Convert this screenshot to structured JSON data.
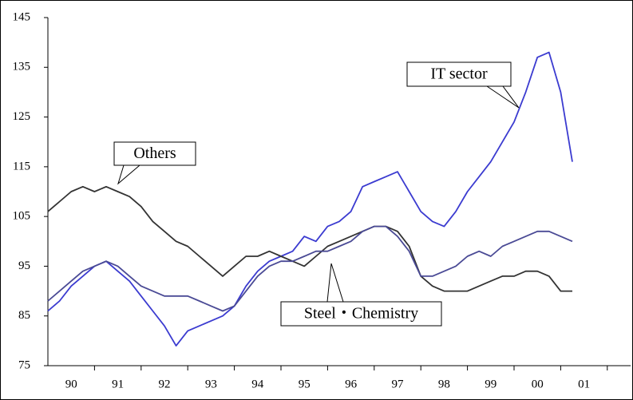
{
  "chart_data": {
    "type": "line",
    "x": [
      1990,
      1990.25,
      1990.5,
      1990.75,
      1991,
      1991.25,
      1991.5,
      1991.75,
      1992,
      1992.25,
      1992.5,
      1992.75,
      1993,
      1993.25,
      1993.5,
      1993.75,
      1994,
      1994.25,
      1994.5,
      1994.75,
      1995,
      1995.25,
      1995.5,
      1995.75,
      1996,
      1996.25,
      1996.5,
      1996.75,
      1997,
      1997.25,
      1997.5,
      1997.75,
      1998,
      1998.25,
      1998.5,
      1998.75,
      1999,
      1999.25,
      1999.5,
      1999.75,
      2000,
      2000.25,
      2000.5,
      2000.75,
      2001,
      2001.25
    ],
    "series": [
      {
        "name": "IT sector",
        "color": "#3b3bd0",
        "values": [
          86,
          88,
          91,
          93,
          95,
          96,
          94,
          92,
          89,
          86,
          83,
          79,
          82,
          83,
          84,
          85,
          87,
          91,
          94,
          96,
          97,
          98,
          101,
          100,
          103,
          104,
          106,
          111,
          112,
          113,
          114,
          110,
          106,
          104,
          103,
          106,
          110,
          113,
          116,
          120,
          124,
          130,
          137,
          138,
          130,
          116
        ]
      },
      {
        "name": "Others",
        "color": "#333333",
        "values": [
          106,
          108,
          110,
          111,
          110,
          111,
          110,
          109,
          107,
          104,
          102,
          100,
          99,
          97,
          95,
          93,
          95,
          97,
          97,
          98,
          97,
          96,
          95,
          97,
          99,
          100,
          101,
          102,
          103,
          103,
          102,
          99,
          93,
          91,
          90,
          90,
          90,
          91,
          92,
          93,
          93,
          94,
          94,
          93,
          90,
          90
        ]
      },
      {
        "name": "Steel・Chemistry",
        "color": "#4a4a95",
        "values": [
          88,
          90,
          92,
          94,
          95,
          96,
          95,
          93,
          91,
          90,
          89,
          89,
          89,
          88,
          87,
          86,
          87,
          90,
          93,
          95,
          96,
          96,
          97,
          98,
          98,
          99,
          100,
          102,
          103,
          103,
          101,
          98,
          93,
          93,
          94,
          95,
          97,
          98,
          97,
          99,
          100,
          101,
          102,
          102,
          101,
          100
        ]
      }
    ],
    "ylim": [
      75,
      145
    ],
    "yticks": [
      75,
      85,
      95,
      105,
      115,
      125,
      135,
      145
    ],
    "xlim": [
      1990,
      2002.5
    ],
    "xticks": [
      {
        "value": 1990.5,
        "label": "90"
      },
      {
        "value": 1991.5,
        "label": "91"
      },
      {
        "value": 1992.5,
        "label": "92"
      },
      {
        "value": 1993.5,
        "label": "93"
      },
      {
        "value": 1994.5,
        "label": "94"
      },
      {
        "value": 1995.5,
        "label": "95"
      },
      {
        "value": 1996.5,
        "label": "96"
      },
      {
        "value": 1997.5,
        "label": "97"
      },
      {
        "value": 1998.5,
        "label": "98"
      },
      {
        "value": 1999.5,
        "label": "99"
      },
      {
        "value": 2000.5,
        "label": "00"
      },
      {
        "value": 2001.5,
        "label": "01"
      }
    ],
    "grid": false
  }
}
